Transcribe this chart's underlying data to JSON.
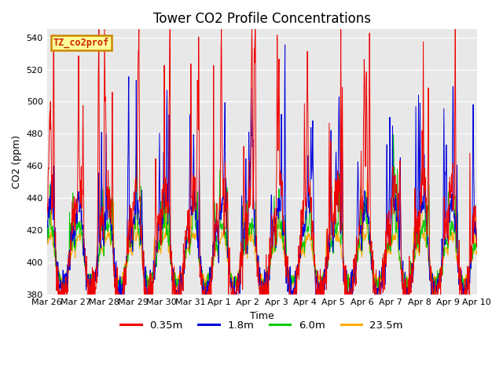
{
  "title": "Tower CO2 Profile Concentrations",
  "xlabel": "Time",
  "ylabel": "CO2 (ppm)",
  "ylim": [
    380,
    545
  ],
  "yticks": [
    380,
    400,
    420,
    440,
    460,
    480,
    500,
    520,
    540
  ],
  "date_labels": [
    "Mar 26",
    "Mar 27",
    "Mar 28",
    "Mar 29",
    "Mar 30",
    "Mar 31",
    "Apr 1",
    "Apr 2",
    "Apr 3",
    "Apr 4",
    "Apr 5",
    "Apr 6",
    "Apr 7",
    "Apr 8",
    "Apr 9",
    "Apr 10"
  ],
  "lines": [
    {
      "label": "0.35m",
      "color": "#ee0000"
    },
    {
      "label": "1.8m",
      "color": "#0000dd"
    },
    {
      "label": "6.0m",
      "color": "#00cc00"
    },
    {
      "label": "23.5m",
      "color": "#ffaa00"
    }
  ],
  "legend_box_label": "TZ_co2prof",
  "legend_box_color": "#ffff99",
  "legend_box_edge": "#cc8800",
  "bg_color": "#e8e8e8",
  "n_days": 15,
  "pts_per_day": 96,
  "base_co2": 397
}
